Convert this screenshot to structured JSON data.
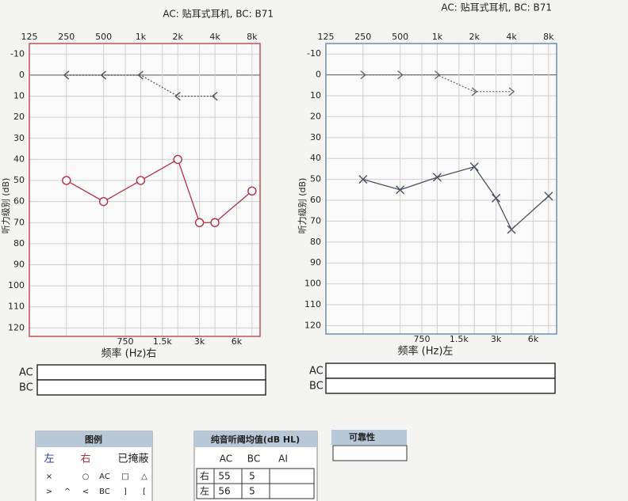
{
  "chart_data": [
    {
      "type": "line",
      "title": "AC: 贴耳式耳机, BC: B71",
      "ylabel": "听力级别 (dB)",
      "xlabel": "频率 (Hz)右",
      "xscale": "log",
      "xlim": [
        125,
        9300
      ],
      "ylim": [
        -15,
        124
      ],
      "y_inverted": true,
      "grid": true,
      "frame_color": "#c0505a",
      "xticks": [
        125,
        250,
        500,
        {
          "value": 1000,
          "label": "1k"
        },
        {
          "value": 2000,
          "label": "2k"
        },
        {
          "value": 4000,
          "label": "4k"
        },
        {
          "value": 8000,
          "label": "8k"
        }
      ],
      "xticks_minor": [
        750,
        {
          "value": 1500,
          "label": "1.5k"
        },
        {
          "value": 3000,
          "label": "3k"
        },
        {
          "value": 6000,
          "label": "6k"
        }
      ],
      "yticks": [
        -10,
        0,
        10,
        20,
        30,
        40,
        50,
        60,
        70,
        80,
        90,
        100,
        110,
        120
      ],
      "series": [
        {
          "name": "AC",
          "marker": "o",
          "linestyle": "solid",
          "color": "#b03040",
          "x": [
            250,
            500,
            1000,
            2000,
            3000,
            4000,
            8000
          ],
          "values": [
            50,
            60,
            50,
            40,
            70,
            70,
            55
          ]
        },
        {
          "name": "BC",
          "marker": "<",
          "linestyle": "dotted",
          "color": "#555555",
          "x": [
            250,
            500,
            1000,
            2000,
            4000
          ],
          "values": [
            0,
            0,
            0,
            10,
            10
          ]
        }
      ],
      "threshold_rows": [
        "AC",
        "BC"
      ]
    },
    {
      "type": "line",
      "title": "AC: 贴耳式耳机, BC: B71",
      "ylabel": "听力级别 (dB)",
      "xlabel": "频率 (Hz)左",
      "xscale": "log",
      "xlim": [
        125,
        9300
      ],
      "ylim": [
        -15,
        124
      ],
      "y_inverted": true,
      "grid": true,
      "frame_color": "#6c8cb0",
      "xticks": [
        125,
        250,
        500,
        {
          "value": 1000,
          "label": "1k"
        },
        {
          "value": 2000,
          "label": "2k"
        },
        {
          "value": 4000,
          "label": "4k"
        },
        {
          "value": 8000,
          "label": "8k"
        }
      ],
      "xticks_minor": [
        750,
        {
          "value": 1500,
          "label": "1.5k"
        },
        {
          "value": 3000,
          "label": "3k"
        },
        {
          "value": 6000,
          "label": "6k"
        }
      ],
      "yticks": [
        -10,
        0,
        10,
        20,
        30,
        40,
        50,
        60,
        70,
        80,
        90,
        100,
        110,
        120
      ],
      "series": [
        {
          "name": "AC",
          "marker": "x",
          "linestyle": "solid",
          "color": "#4a5060",
          "x": [
            250,
            500,
            1000,
            2000,
            3000,
            4000,
            8000
          ],
          "values": [
            50,
            55,
            49,
            44,
            59,
            74,
            58
          ]
        },
        {
          "name": "BC",
          "marker": ">",
          "linestyle": "dotted",
          "color": "#666666",
          "x": [
            250,
            500,
            1000,
            2000,
            4000
          ],
          "values": [
            0,
            0,
            0,
            8,
            8
          ]
        }
      ],
      "threshold_rows": [
        "AC",
        "BC"
      ]
    }
  ],
  "legend_table": {
    "title": "图例",
    "columns": [
      "左",
      "右",
      "已掩蔽"
    ],
    "rows": [
      [
        "×",
        "○",
        "AC",
        "□",
        "△"
      ],
      [
        ">",
        "^",
        "<",
        "BC",
        "]",
        "["
      ]
    ]
  },
  "pta_table": {
    "title": "纯音听阈均值(dB HL)",
    "columns": [
      "AC",
      "BC",
      "AI"
    ],
    "rows": [
      [
        "右",
        "55",
        "5"
      ],
      [
        "左",
        "56",
        "5"
      ]
    ]
  },
  "reliability": {
    "title": "可靠性"
  }
}
